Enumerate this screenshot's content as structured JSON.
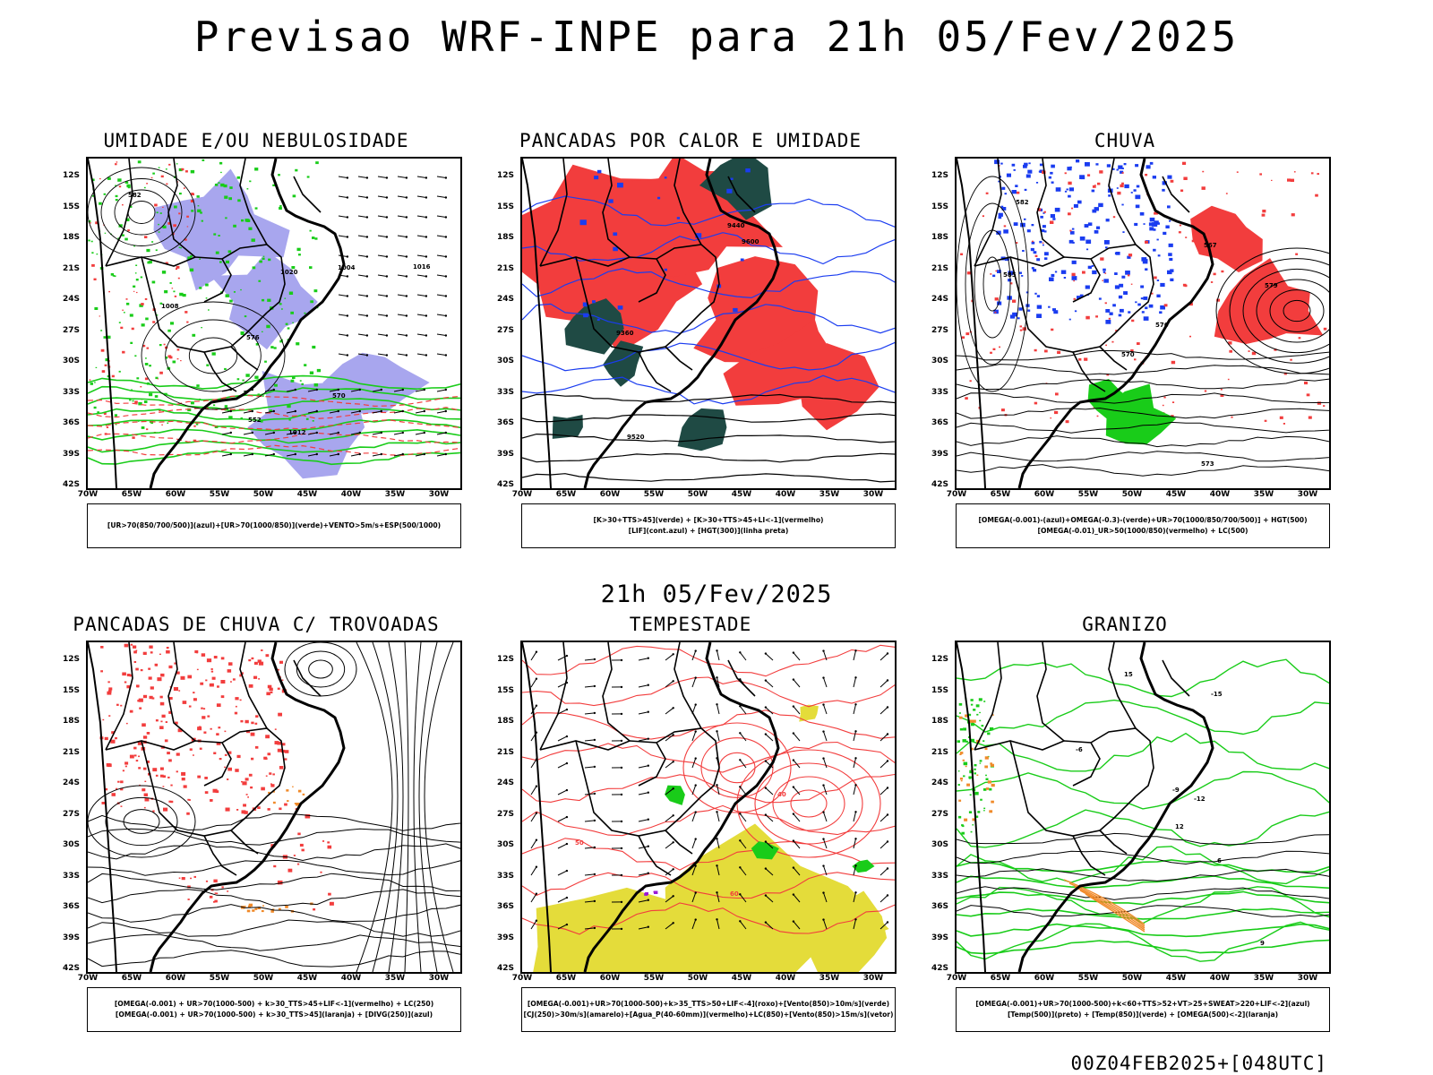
{
  "header": {
    "title": "Previsao WRF-INPE  para 21h 05/Fev/2025"
  },
  "mid_title": "21h 05/Fev/2025",
  "footer": "00Z04FEB2025+[048UTC]",
  "axes": {
    "lat_labels": [
      "12S",
      "15S",
      "18S",
      "21S",
      "24S",
      "27S",
      "30S",
      "33S",
      "36S",
      "39S",
      "42S"
    ],
    "lon_labels": [
      "70W",
      "65W",
      "60W",
      "55W",
      "50W",
      "45W",
      "40W",
      "35W",
      "30W"
    ]
  },
  "panels": [
    {
      "title": "UMIDADE E/OU NEBULOSIDADE",
      "legend": [
        "[UR>70(850/700/500)](azul)+[UR>70(1000/850)](verde)+VENTO>5m/s+ESP(500/1000)"
      ],
      "contour_labels": [
        "1012",
        "1016",
        "1008",
        "1004",
        "1020",
        "570",
        "552",
        "576",
        "582"
      ]
    },
    {
      "title": "PANCADAS POR CALOR E UMIDADE",
      "legend": [
        "[K>30+TTS>45](verde) + [K>30+TTS>45+LI<-1](vermelho)",
        "[LIF](cont.azul) + [HGT(300)](linha preta)"
      ],
      "contour_labels": [
        "9600",
        "9520",
        "9440",
        "9360"
      ]
    },
    {
      "title": "CHUVA",
      "legend": [
        "[OMEGA(-0.001)-(azul)+OMEGA(-0.3)-(verde)+UR>70(1000/850/700/500)] + HGT(500)",
        "[OMEGA(-0.01)_UR>50(1000/850)(vermelho) + LC(500)"
      ],
      "contour_labels": [
        "585",
        "582",
        "579",
        "576",
        "573",
        "570",
        "567"
      ]
    },
    {
      "title": "PANCADAS DE CHUVA C/ TROVOADAS",
      "legend": [
        "[OMEGA(-0.001) + UR>70(1000-500) + k>30_TTS>45+LIF<-1](vermelho) + LC(250)",
        "[OMEGA(-0.001) + UR>70(1000-500) + k>30_TTS>45](laranja) + [DIVG(250)](azul)"
      ],
      "contour_labels": []
    },
    {
      "title": "TEMPESTADE",
      "legend": [
        "[OMEGA(-0.001)+UR>70(1000-500)+k>35_TTS>50+LIF<-4](roxo)+[Vento(850)>10m/s](verde)",
        "[CJ(250)>30m/s](amarelo)+[Agua_P(40-60mm)](vermelho)+LC(850)+[Vento(850)>15m/s](vetor)"
      ],
      "contour_labels": [
        "40",
        "50",
        "60"
      ]
    },
    {
      "title": "GRANIZO",
      "legend": [
        "[OMEGA(-0.001)+UR>70(1000-500)+k<60+TTS>52+VT>25+SWEAT>220+LIF<-2](azul)",
        "[Temp(500)](preto) + [Temp(850)](verde) + [OMEGA(500)<-2](laranja)"
      ],
      "contour_labels": [
        "-6",
        "-9",
        "-12",
        "-15",
        "6",
        "9",
        "12",
        "15"
      ]
    }
  ],
  "colors": {
    "red": "#f23d3d",
    "green": "#19cc19",
    "blue": "#1a3cf0",
    "lavender": "#a8a6ee",
    "darkgreen": "#1f4a44",
    "yellow": "#e4dc3a",
    "orange": "#f08a2a",
    "purple": "#9a1ad6"
  }
}
